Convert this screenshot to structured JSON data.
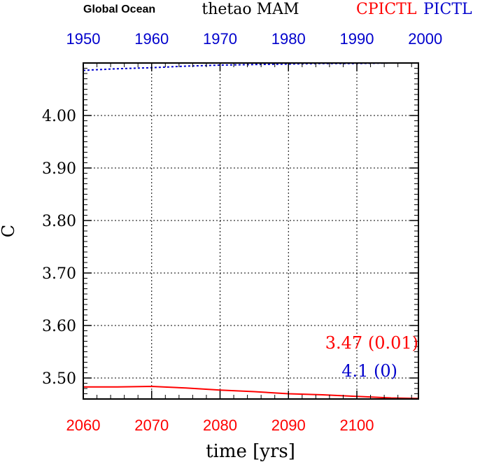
{
  "header": {
    "region": "Global Ocean",
    "variable": "thetao MAM",
    "series_label_red": "CPICTL",
    "series_label_blue": "PICTL"
  },
  "colors": {
    "red": "#ff0000",
    "blue": "#0000cc",
    "axis": "#000000",
    "grid": "#000000"
  },
  "chart_data": {
    "type": "line",
    "title": "thetao MAM",
    "xlabel": "time [yrs]",
    "ylabel": "C",
    "ylim": [
      3.46,
      4.1
    ],
    "yticks": [
      "3.50",
      "3.60",
      "3.70",
      "3.80",
      "3.90",
      "4.00"
    ],
    "bottom_axis": {
      "range": [
        2060,
        2109
      ],
      "ticks": [
        "2060",
        "2070",
        "2080",
        "2090",
        "2100"
      ],
      "color": "red"
    },
    "top_axis": {
      "range": [
        1950,
        1999
      ],
      "ticks": [
        "1950",
        "1960",
        "1970",
        "1980",
        "1990",
        "2000"
      ],
      "color": "blue"
    },
    "grid": true,
    "series": [
      {
        "name": "CPICTL",
        "color": "red",
        "axis": "bottom",
        "style": "solid",
        "x": [
          2060,
          2065,
          2070,
          2075,
          2080,
          2085,
          2090,
          2095,
          2100,
          2105,
          2109
        ],
        "y": [
          3.483,
          3.483,
          3.484,
          3.481,
          3.477,
          3.474,
          3.47,
          3.468,
          3.465,
          3.462,
          3.461
        ]
      },
      {
        "name": "PICTL",
        "color": "blue",
        "axis": "top",
        "style": "dotted",
        "x": [
          1950,
          1955,
          1960,
          1965,
          1970,
          1975,
          1980,
          1985,
          1990,
          1995,
          1999
        ],
        "y": [
          4.086,
          4.089,
          4.091,
          4.094,
          4.096,
          4.097,
          4.098,
          4.099,
          4.099,
          4.1,
          4.1
        ]
      }
    ],
    "annotations": {
      "red_stat": "3.47 (0.01)",
      "blue_stat": "4.1 (0)"
    }
  }
}
